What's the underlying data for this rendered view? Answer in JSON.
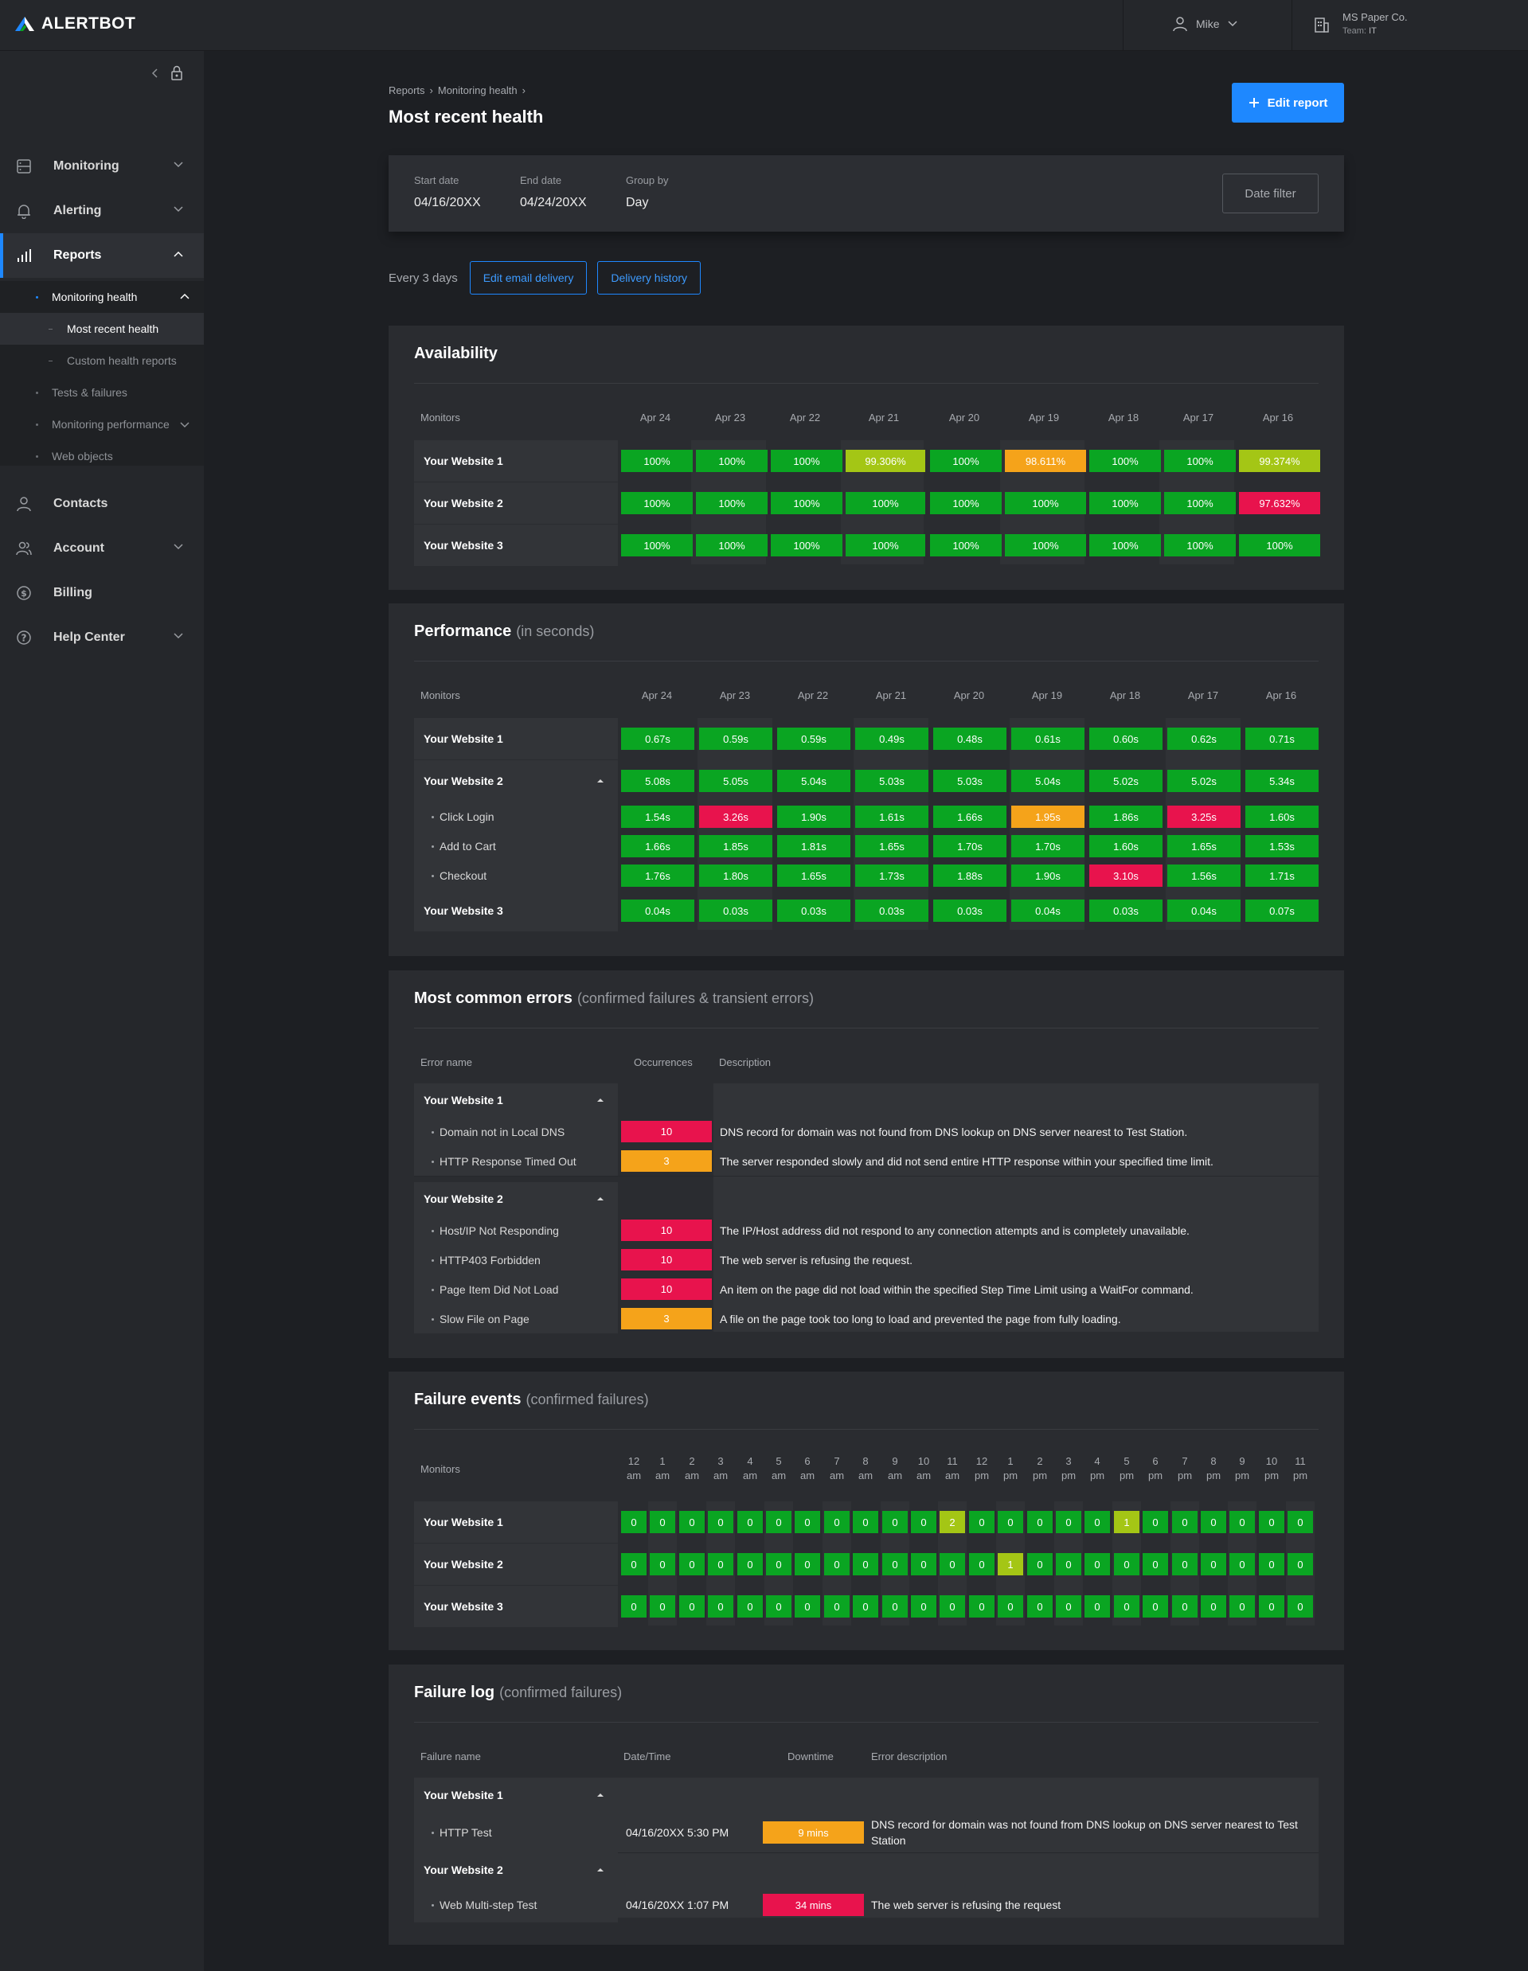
{
  "app": {
    "logo_text": "ALERTBOT"
  },
  "topbar": {
    "user_name": "Mike",
    "org_name": "MS Paper Co.",
    "team_label": "Team:",
    "team_value": "IT"
  },
  "sidebar": {
    "items": [
      {
        "label": "Monitoring"
      },
      {
        "label": "Alerting"
      },
      {
        "label": "Reports"
      },
      {
        "label": "Contacts"
      },
      {
        "label": "Account"
      },
      {
        "label": "Billing"
      },
      {
        "label": "Help Center"
      }
    ],
    "report_sub": {
      "monitoring_health": "Monitoring health",
      "most_recent_health": "Most recent health",
      "custom_health_reports": "Custom health reports",
      "tests_failures": "Tests & failures",
      "monitoring_performance": "Monitoring performance",
      "web_objects": "Web objects"
    }
  },
  "breadcrumb": {
    "level1": "Reports",
    "level2": "Monitoring health",
    "separator": "›"
  },
  "page_title": "Most recent health",
  "edit_report_label": "Edit report",
  "filter": {
    "start_label": "Start date",
    "start_value": "04/16/20XX",
    "end_label": "End date",
    "end_value": "04/24/20XX",
    "group_label": "Group by",
    "group_value": "Day",
    "date_filter_label": "Date filter"
  },
  "delivery": {
    "frequency": "Every 3 days",
    "edit_email_label": "Edit email delivery",
    "history_label": "Delivery history"
  },
  "days": [
    "Apr 24",
    "Apr 23",
    "Apr 22",
    "Apr 21",
    "Apr 20",
    "Apr 19",
    "Apr 18",
    "Apr 17",
    "Apr 16"
  ],
  "availability": {
    "title": "Availability",
    "col_monitors": "Monitors",
    "rows": [
      {
        "name": "Your Website 1",
        "values": [
          "100%",
          "100%",
          "100%",
          "99.306%",
          "100%",
          "98.611%",
          "100%",
          "100%",
          "99.374%"
        ],
        "status": [
          "green",
          "green",
          "green",
          "lime",
          "green",
          "orange",
          "green",
          "green",
          "lime"
        ]
      },
      {
        "name": "Your Website 2",
        "values": [
          "100%",
          "100%",
          "100%",
          "100%",
          "100%",
          "100%",
          "100%",
          "100%",
          "97.632%"
        ],
        "status": [
          "green",
          "green",
          "green",
          "green",
          "green",
          "green",
          "green",
          "green",
          "red"
        ]
      },
      {
        "name": "Your Website 3",
        "values": [
          "100%",
          "100%",
          "100%",
          "100%",
          "100%",
          "100%",
          "100%",
          "100%",
          "100%"
        ],
        "status": [
          "green",
          "green",
          "green",
          "green",
          "green",
          "green",
          "green",
          "green",
          "green"
        ]
      }
    ]
  },
  "performance": {
    "title": "Performance",
    "subtitle": "(in seconds)",
    "col_monitors": "Monitors",
    "rows": [
      {
        "name": "Your Website 1",
        "values": [
          "0.67s",
          "0.59s",
          "0.59s",
          "0.49s",
          "0.48s",
          "0.61s",
          "0.60s",
          "0.62s",
          "0.71s"
        ],
        "status": [
          "green",
          "green",
          "green",
          "green",
          "green",
          "green",
          "green",
          "green",
          "green"
        ]
      },
      {
        "name": "Your Website 2",
        "values": [
          "5.08s",
          "5.05s",
          "5.04s",
          "5.03s",
          "5.03s",
          "5.04s",
          "5.02s",
          "5.02s",
          "5.34s"
        ],
        "status": [
          "green",
          "green",
          "green",
          "green",
          "green",
          "green",
          "green",
          "green",
          "green"
        ]
      },
      {
        "name": "Click Login",
        "values": [
          "1.54s",
          "3.26s",
          "1.90s",
          "1.61s",
          "1.66s",
          "1.95s",
          "1.86s",
          "3.25s",
          "1.60s"
        ],
        "status": [
          "green",
          "red",
          "green",
          "green",
          "green",
          "orange",
          "green",
          "red",
          "green"
        ]
      },
      {
        "name": "Add to Cart",
        "values": [
          "1.66s",
          "1.85s",
          "1.81s",
          "1.65s",
          "1.70s",
          "1.70s",
          "1.60s",
          "1.65s",
          "1.53s"
        ],
        "status": [
          "green",
          "green",
          "green",
          "green",
          "green",
          "green",
          "green",
          "green",
          "green"
        ]
      },
      {
        "name": "Checkout",
        "values": [
          "1.76s",
          "1.80s",
          "1.65s",
          "1.73s",
          "1.88s",
          "1.90s",
          "3.10s",
          "1.56s",
          "1.71s"
        ],
        "status": [
          "green",
          "green",
          "green",
          "green",
          "green",
          "green",
          "red",
          "green",
          "green"
        ]
      },
      {
        "name": "Your Website 3",
        "values": [
          "0.04s",
          "0.03s",
          "0.03s",
          "0.03s",
          "0.03s",
          "0.04s",
          "0.03s",
          "0.04s",
          "0.07s"
        ],
        "status": [
          "green",
          "green",
          "green",
          "green",
          "green",
          "green",
          "green",
          "green",
          "green"
        ]
      }
    ]
  },
  "errors": {
    "title": "Most common errors",
    "subtitle": "(confirmed failures & transient errors)",
    "col_name": "Error name",
    "col_occ": "Occurrences",
    "col_desc": "Description",
    "groups": [
      {
        "name": "Your Website 1",
        "items": [
          {
            "name": "Domain not in Local DNS",
            "count": "10",
            "status": "red",
            "desc": "DNS record for domain was not found from DNS lookup on DNS server nearest to Test Station."
          },
          {
            "name": "HTTP Response Timed Out",
            "count": "3",
            "status": "orange",
            "desc": "The server responded slowly and did not send entire HTTP response within your specified time limit."
          }
        ]
      },
      {
        "name": "Your Website 2",
        "items": [
          {
            "name": "Host/IP Not Responding",
            "count": "10",
            "status": "red",
            "desc": "The IP/Host address did not respond to any connection attempts and is completely unavailable."
          },
          {
            "name": "HTTP403 Forbidden",
            "count": "10",
            "status": "red",
            "desc": "The web server is refusing the request."
          },
          {
            "name": "Page Item Did Not Load",
            "count": "10",
            "status": "red",
            "desc": "An item on the page did not load within the specified Step Time Limit using a WaitFor command."
          },
          {
            "name": "Slow File on Page",
            "count": "3",
            "status": "orange",
            "desc": "A file on the page took too long to load and prevented the page from fully loading."
          }
        ]
      }
    ]
  },
  "failure_events": {
    "title": "Failure events",
    "subtitle": "(confirmed failures)",
    "col_monitors": "Monitors",
    "hours": [
      [
        "12",
        "am"
      ],
      [
        "1",
        "am"
      ],
      [
        "2",
        "am"
      ],
      [
        "3",
        "am"
      ],
      [
        "4",
        "am"
      ],
      [
        "5",
        "am"
      ],
      [
        "6",
        "am"
      ],
      [
        "7",
        "am"
      ],
      [
        "8",
        "am"
      ],
      [
        "9",
        "am"
      ],
      [
        "10",
        "am"
      ],
      [
        "11",
        "am"
      ],
      [
        "12",
        "pm"
      ],
      [
        "1",
        "pm"
      ],
      [
        "2",
        "pm"
      ],
      [
        "3",
        "pm"
      ],
      [
        "4",
        "pm"
      ],
      [
        "5",
        "pm"
      ],
      [
        "6",
        "pm"
      ],
      [
        "7",
        "pm"
      ],
      [
        "8",
        "pm"
      ],
      [
        "9",
        "pm"
      ],
      [
        "10",
        "pm"
      ],
      [
        "11",
        "pm"
      ]
    ],
    "rows": [
      {
        "name": "Your Website 1",
        "values": [
          "0",
          "0",
          "0",
          "0",
          "0",
          "0",
          "0",
          "0",
          "0",
          "0",
          "0",
          "2",
          "0",
          "0",
          "0",
          "0",
          "0",
          "1",
          "0",
          "0",
          "0",
          "0",
          "0",
          "0"
        ]
      },
      {
        "name": "Your Website 2",
        "values": [
          "0",
          "0",
          "0",
          "0",
          "0",
          "0",
          "0",
          "0",
          "0",
          "0",
          "0",
          "0",
          "0",
          "1",
          "0",
          "0",
          "0",
          "0",
          "0",
          "0",
          "0",
          "0",
          "0",
          "0"
        ]
      },
      {
        "name": "Your Website 3",
        "values": [
          "0",
          "0",
          "0",
          "0",
          "0",
          "0",
          "0",
          "0",
          "0",
          "0",
          "0",
          "0",
          "0",
          "0",
          "0",
          "0",
          "0",
          "0",
          "0",
          "0",
          "0",
          "0",
          "0",
          "0"
        ]
      }
    ]
  },
  "failure_log": {
    "title": "Failure log",
    "subtitle": "(confirmed failures)",
    "col_name": "Failure name",
    "col_date": "Date/Time",
    "col_down": "Downtime",
    "col_desc": "Error description",
    "groups": [
      {
        "name": "Your Website 1",
        "items": [
          {
            "name": "HTTP Test",
            "date": "04/16/20XX 5:30 PM",
            "downtime": "9 mins",
            "status": "orange",
            "desc": "DNS record for domain was not found from DNS lookup on DNS server nearest to Test Station"
          }
        ]
      },
      {
        "name": "Your Website 2",
        "items": [
          {
            "name": "Web Multi-step Test",
            "date": "04/16/20XX 1:07 PM",
            "downtime": "34 mins",
            "status": "red",
            "desc": "The web server is refusing the request"
          }
        ]
      }
    ]
  },
  "colors": {
    "accent": "#1e88ff",
    "green": "#0aa522",
    "lime": "#a4c615",
    "orange": "#f5a31a",
    "red": "#e8134d"
  },
  "icons": {
    "monitoring": "server-icon",
    "alerting": "bell-icon",
    "reports": "bar-chart-icon",
    "contacts": "person-icon",
    "account": "people-icon",
    "billing": "coin-icon",
    "help": "question-circle-icon"
  }
}
